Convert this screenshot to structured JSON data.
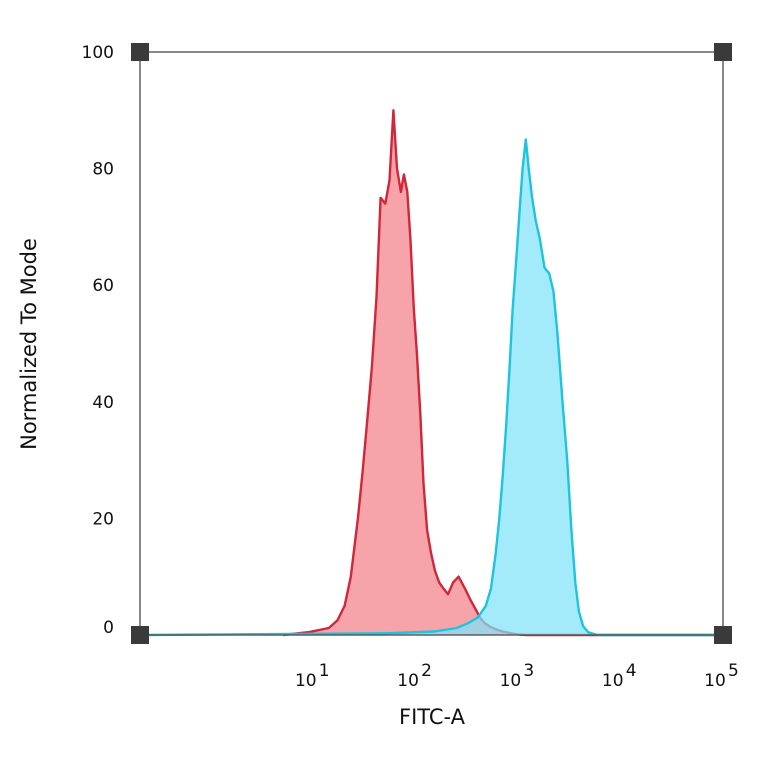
{
  "chart_data": {
    "type": "area",
    "title": "",
    "xlabel": "FITC-A",
    "ylabel": "Normalized To Mode",
    "x_scale": "log",
    "xlim": [
      0.2,
      100000.0
    ],
    "ylim": [
      0,
      100
    ],
    "grid": false,
    "yticks": [
      {
        "value": 0,
        "label": "0"
      },
      {
        "value": 20,
        "label": "20"
      },
      {
        "value": 40,
        "label": "40"
      },
      {
        "value": 60,
        "label": "60"
      },
      {
        "value": 80,
        "label": "80"
      },
      {
        "value": 100,
        "label": "100"
      }
    ],
    "xticks": [
      {
        "value": 10,
        "base": "10",
        "exp": "1"
      },
      {
        "value": 100,
        "base": "10",
        "exp": "2"
      },
      {
        "value": 1000,
        "base": "10",
        "exp": "3"
      },
      {
        "value": 10000,
        "base": "10",
        "exp": "4"
      },
      {
        "value": 100000,
        "base": "10",
        "exp": "5"
      }
    ],
    "series": [
      {
        "stroke": "#d0273a",
        "fill": "#f47f89",
        "x": [
          5,
          9,
          14,
          17,
          20,
          23,
          27,
          30,
          33,
          37,
          41,
          45,
          50,
          55,
          60,
          65,
          71,
          76,
          82,
          88,
          95,
          102,
          110,
          118,
          128,
          140,
          153,
          168,
          185,
          205,
          230,
          260,
          300,
          340,
          380,
          420,
          470,
          530,
          600,
          700,
          800,
          900,
          1000,
          1200,
          1500,
          3000,
          100000
        ],
        "y": [
          0,
          0.5,
          1.2,
          2.5,
          5,
          10,
          20,
          28,
          36,
          46,
          58,
          75,
          74,
          78,
          90,
          80,
          76,
          79,
          76,
          68,
          56,
          48,
          38,
          26,
          18,
          14,
          11,
          9,
          8,
          7,
          9,
          10,
          8,
          6,
          4.5,
          3,
          2,
          1.4,
          1,
          0.6,
          0.4,
          0.2,
          0.1,
          0,
          0,
          0,
          0
        ]
      },
      {
        "stroke": "#1ec3e0",
        "fill": "#7fe3fa",
        "x": [
          0.2,
          50,
          150,
          250,
          320,
          400,
          480,
          540,
          600,
          650,
          700,
          760,
          820,
          880,
          950,
          1020,
          1100,
          1180,
          1260,
          1360,
          1480,
          1620,
          1800,
          2000,
          2200,
          2400,
          2700,
          3000,
          3300,
          3600,
          3900,
          4300,
          4800,
          5400,
          6000,
          100000
        ],
        "y": [
          0,
          0.3,
          0.6,
          1.2,
          2,
          3,
          5,
          8,
          14,
          20,
          27,
          36,
          46,
          56,
          64,
          72,
          80,
          85,
          80,
          75,
          71,
          68,
          63,
          62,
          59,
          52,
          40,
          30,
          18,
          9,
          4,
          1.5,
          0.5,
          0.2,
          0,
          0
        ]
      }
    ]
  }
}
